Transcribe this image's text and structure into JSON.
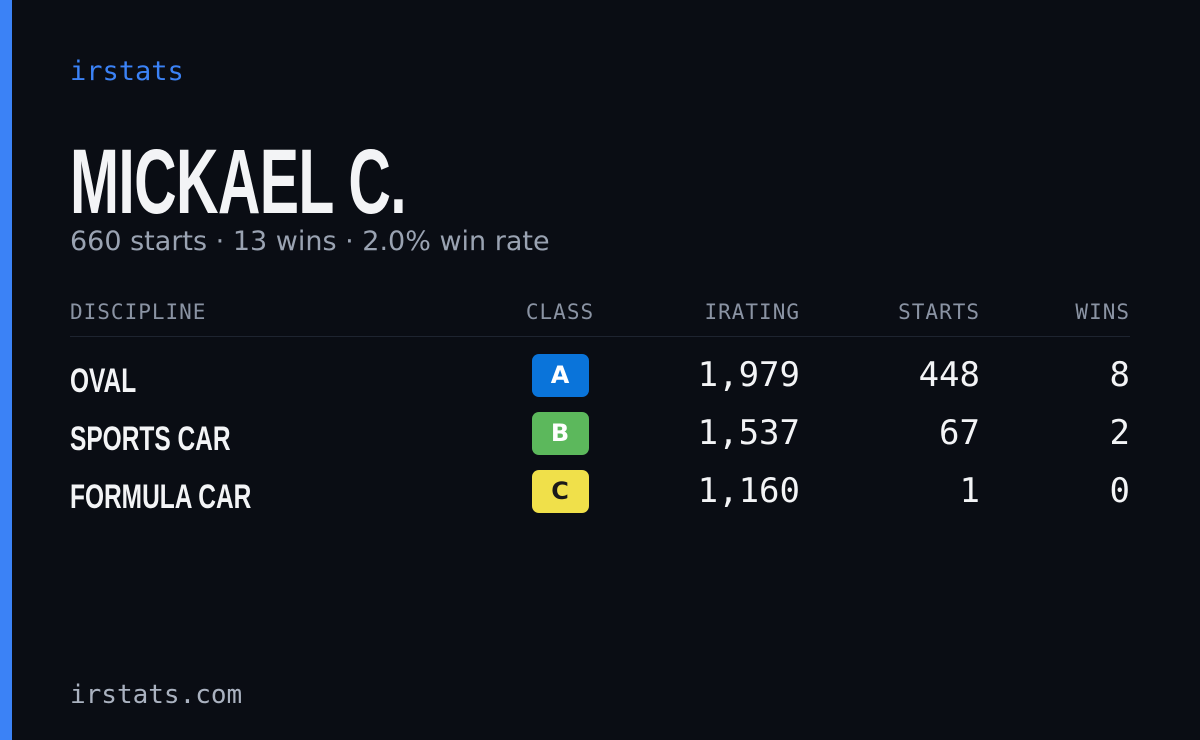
{
  "brand": "irstats",
  "driver": {
    "name": "MICKAEL C.",
    "summary": "660 starts · 13 wins · 2.0% win rate"
  },
  "table": {
    "columns": [
      "DISCIPLINE",
      "CLASS",
      "IRATING",
      "STARTS",
      "WINS"
    ],
    "rows": [
      [
        "OVAL",
        "A",
        "1,979",
        "448",
        "8"
      ],
      [
        "SPORTS CAR",
        "B",
        "1,537",
        "67",
        "2"
      ],
      [
        "FORMULA CAR",
        "C",
        "1,160",
        "1",
        "0"
      ]
    ]
  },
  "footer": "irstats.com"
}
